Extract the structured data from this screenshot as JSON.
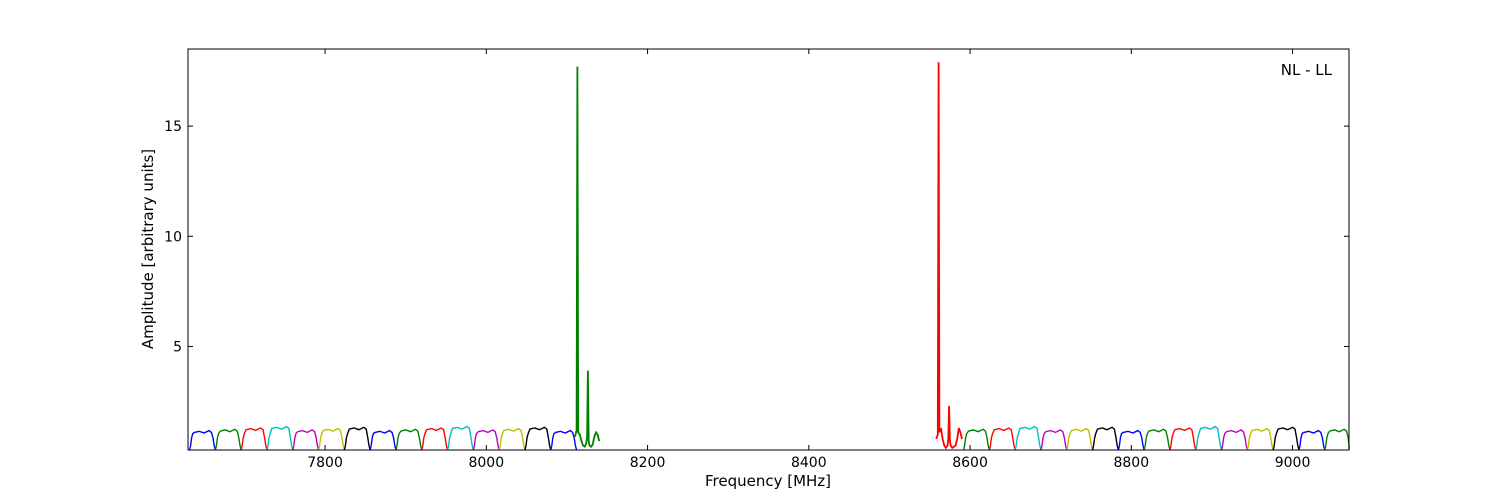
{
  "chart_data": {
    "type": "line",
    "xlabel": "Frequency [MHz]",
    "ylabel": "Amplitude [arbitrary units]",
    "annotation": "NL - LL",
    "xlim": [
      7630,
      9070
    ],
    "ylim": [
      0.3,
      18.5
    ],
    "xticks": [
      7800,
      8000,
      8200,
      8400,
      8600,
      8800,
      9000
    ],
    "yticks": [
      5,
      10,
      15
    ],
    "grid": false,
    "legend": "none",
    "palette": [
      "#0000ff",
      "#008000",
      "#ff0000",
      "#00bfbf",
      "#bf00bf",
      "#bfbf00",
      "#000000"
    ],
    "subband_width_mhz": 32,
    "subband_shape": "bandpass, ~1.1-1.3 plateau",
    "subband_starts_mhz": [
      7632,
      7664,
      7696,
      7728,
      7760,
      7792,
      7824,
      7856,
      7888,
      7920,
      7952,
      7984,
      8016,
      8048,
      8080,
      8592,
      8624,
      8656,
      8688,
      8720,
      8752,
      8784,
      8816,
      8848,
      8880,
      8912,
      8944,
      8976,
      9008,
      9040
    ],
    "series": [
      {
        "color": "#008000",
        "x": [
          8110,
          8112,
          8113,
          8114,
          8116,
          8118,
          8120,
          8122,
          8124,
          8125,
          8126,
          8127,
          8128,
          8130,
          8132,
          8134,
          8136,
          8138,
          8140
        ],
        "y": [
          0.9,
          1.2,
          17.7,
          1.1,
          1.0,
          0.7,
          0.5,
          0.45,
          0.6,
          0.9,
          3.9,
          0.7,
          0.5,
          0.45,
          0.55,
          0.9,
          1.1,
          1.0,
          0.7
        ]
      },
      {
        "color": "#ff0000",
        "x": [
          8558,
          8560,
          8561,
          8562,
          8564,
          8566,
          8568,
          8570,
          8572,
          8573,
          8574,
          8575,
          8576,
          8578,
          8580,
          8582,
          8584,
          8586,
          8588,
          8590
        ],
        "y": [
          0.8,
          1.0,
          17.9,
          1.1,
          1.3,
          0.8,
          0.5,
          0.4,
          0.5,
          0.8,
          2.3,
          0.7,
          0.5,
          0.4,
          0.45,
          0.5,
          0.8,
          1.3,
          1.1,
          0.8
        ]
      }
    ]
  }
}
